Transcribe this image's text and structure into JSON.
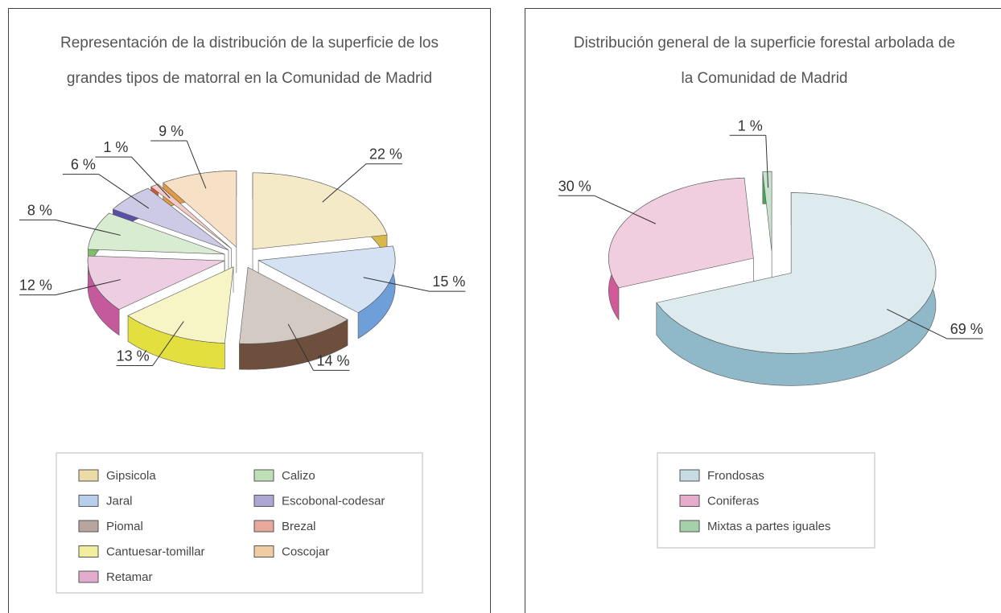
{
  "chart_data": [
    {
      "type": "pie",
      "title": "Representación de la distribución de la superficie de los grandes tipos de matorral en la Comunidad de Madrid",
      "categories": [
        "Gipsicola",
        "Jaral",
        "Piomal",
        "Cantuesar-tomillar",
        "Retamar",
        "Calizo",
        "Escobonal-codesar",
        "Brezal",
        "Coscojar"
      ],
      "values": [
        22,
        15,
        14,
        13,
        12,
        8,
        6,
        1,
        9
      ],
      "value_labels": [
        "22 %",
        "15 %",
        "14 %",
        "13 %",
        "12 %",
        "8 %",
        "6 %",
        "1 %",
        "9 %"
      ],
      "colors": [
        "#d9b84a",
        "#6f9fd8",
        "#6e4e3c",
        "#e3df3e",
        "#c45a9c",
        "#7fbf6a",
        "#5a4fa8",
        "#d2533a",
        "#e29a45"
      ]
    },
    {
      "type": "pie",
      "title": "Distribución general de la superficie forestal arbolada de la Comunidad de Madrid",
      "categories": [
        "Frondosas",
        "Coniferas",
        "Mixtas a partes iguales"
      ],
      "values": [
        69,
        30,
        1
      ],
      "value_labels": [
        "69 %",
        "30 %",
        "1 %"
      ],
      "colors": [
        "#8fb8c8",
        "#d05a98",
        "#4aa35a"
      ]
    }
  ]
}
